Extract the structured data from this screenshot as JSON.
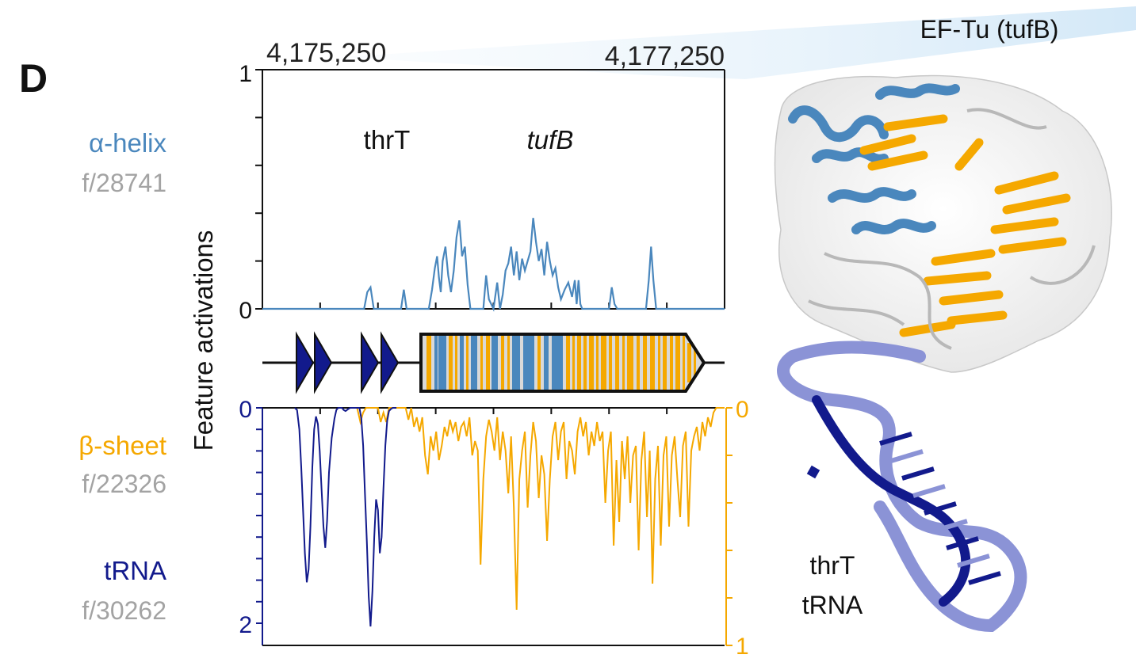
{
  "panel_label": "D",
  "colors": {
    "helix": "#4a87bd",
    "sheet": "#f5a800",
    "trna": "#121a8c",
    "feature_id": "#a3a3a3",
    "gene_fill": "#d9d9d9",
    "protein_light": "#f3f3f3",
    "rna_light": "#8b93d6"
  },
  "features": [
    {
      "name": "α-helix",
      "id": "f/28741",
      "color": "#4a87bd"
    },
    {
      "name": "β-sheet",
      "id": "f/22326",
      "color": "#f5a800"
    },
    {
      "name": "tRNA",
      "id": "f/30262",
      "color": "#121a8c"
    }
  ],
  "structure_labels": {
    "protein": "EF-Tu (tufB)",
    "rna_line1": "thrT",
    "rna_line2": "tRNA"
  },
  "chart_data": [
    {
      "type": "line",
      "name": "top",
      "ylabel": "Feature activations",
      "x_coordinate_labels": [
        "4,175,250",
        "4,177,250"
      ],
      "ylim": [
        0,
        1
      ],
      "yticks": [
        "0",
        "1"
      ],
      "gene_annotations": [
        {
          "label": "thrT",
          "italic": false
        },
        {
          "label": "tufB",
          "italic": true
        }
      ],
      "series": [
        {
          "feature": "α-helix",
          "color": "#4a87bd",
          "x": [
            0,
            0.22,
            0.227,
            0.234,
            0.241,
            0.3,
            0.306,
            0.312,
            0.36,
            0.367,
            0.373,
            0.378,
            0.382,
            0.386,
            0.39,
            0.396,
            0.402,
            0.408,
            0.414,
            0.42,
            0.426,
            0.432,
            0.438,
            0.444,
            0.45,
            0.456,
            0.478,
            0.484,
            0.49,
            0.5,
            0.508,
            0.514,
            0.52,
            0.526,
            0.532,
            0.538,
            0.544,
            0.55,
            0.556,
            0.562,
            0.568,
            0.574,
            0.58,
            0.586,
            0.592,
            0.598,
            0.604,
            0.61,
            0.616,
            0.622,
            0.628,
            0.634,
            0.64,
            0.646,
            0.654,
            0.662,
            0.67,
            0.676,
            0.68,
            0.684,
            0.688,
            0.692,
            0.75,
            0.756,
            0.762,
            0.768,
            0.83,
            0.836,
            0.841,
            0.846,
            0.852,
            1.0
          ],
          "y": [
            0,
            0,
            0.07,
            0.09,
            0,
            0,
            0.08,
            0,
            0,
            0.08,
            0.17,
            0.22,
            0.13,
            0.07,
            0.2,
            0.26,
            0.14,
            0.07,
            0.16,
            0.3,
            0.37,
            0.22,
            0.26,
            0.1,
            0,
            0,
            0,
            0.14,
            0.04,
            0,
            0.11,
            0,
            0.06,
            0.16,
            0.19,
            0.26,
            0.14,
            0.24,
            0.12,
            0.21,
            0.16,
            0.2,
            0.24,
            0.38,
            0.28,
            0.2,
            0.25,
            0.14,
            0.28,
            0.2,
            0.14,
            0.17,
            0.09,
            0.04,
            0.08,
            0.11,
            0.05,
            0.12,
            0.02,
            0.12,
            0.02,
            0,
            0,
            0.09,
            0.02,
            0,
            0,
            0.12,
            0.26,
            0.12,
            0,
            0
          ]
        }
      ]
    },
    {
      "type": "line",
      "name": "bottom",
      "ylabel": "Feature activations",
      "left_axis": {
        "feature": "tRNA",
        "ylim": [
          0,
          2
        ],
        "yticks": [
          "0",
          "2"
        ],
        "inverted": true
      },
      "right_axis": {
        "feature": "β-sheet",
        "ylim": [
          0,
          1
        ],
        "yticks": [
          "0",
          "1"
        ],
        "inverted": true
      },
      "series": [
        {
          "feature": "tRNA",
          "color": "#121a8c",
          "x": [
            0.07,
            0.075,
            0.08,
            0.084,
            0.088,
            0.092,
            0.096,
            0.1,
            0.104,
            0.108,
            0.112,
            0.116,
            0.12,
            0.124,
            0.128,
            0.132,
            0.136,
            0.14,
            0.144,
            0.15,
            0.156,
            0.16,
            0.164,
            0.168,
            0.172,
            0.176,
            0.18,
            0.186,
            0.19,
            0.195,
            0.21,
            0.214,
            0.218,
            0.222,
            0.226,
            0.23,
            0.234,
            0.238,
            0.242,
            0.246,
            0.25,
            0.254,
            0.258,
            0.262,
            0.266,
            0.27,
            0.274,
            0.278,
            0.282,
            0.286,
            0.29
          ],
          "y": [
            0,
            0.02,
            0.2,
            0.55,
            0.95,
            1.35,
            1.62,
            1.5,
            1.1,
            0.55,
            0.2,
            0.08,
            0.15,
            0.4,
            0.75,
            1.1,
            1.3,
            1.05,
            0.6,
            0.28,
            0.1,
            0.02,
            0,
            0,
            0,
            0.02,
            0.03,
            0.01,
            0,
            0,
            0,
            0.1,
            0.35,
            0.8,
            1.25,
            1.75,
            2.03,
            1.7,
            1.2,
            0.85,
            0.95,
            1.35,
            1.2,
            0.75,
            0.35,
            0.12,
            0.03,
            0.01,
            0,
            0,
            0
          ]
        },
        {
          "feature": "β-sheet",
          "color": "#f5a800",
          "x": [
            0.205,
            0.212,
            0.218,
            0.224,
            0.25,
            0.256,
            0.262,
            0.268,
            0.274,
            0.28,
            0.29,
            0.3,
            0.31,
            0.316,
            0.322,
            0.328,
            0.334,
            0.34,
            0.346,
            0.352,
            0.358,
            0.364,
            0.37,
            0.376,
            0.382,
            0.388,
            0.394,
            0.4,
            0.406,
            0.412,
            0.418,
            0.424,
            0.43,
            0.436,
            0.442,
            0.448,
            0.454,
            0.46,
            0.466,
            0.472,
            0.478,
            0.484,
            0.49,
            0.496,
            0.502,
            0.508,
            0.514,
            0.52,
            0.526,
            0.532,
            0.538,
            0.544,
            0.55,
            0.556,
            0.562,
            0.568,
            0.574,
            0.58,
            0.586,
            0.592,
            0.598,
            0.604,
            0.61,
            0.616,
            0.622,
            0.628,
            0.634,
            0.64,
            0.646,
            0.652,
            0.658,
            0.664,
            0.67,
            0.676,
            0.682,
            0.688,
            0.694,
            0.7,
            0.706,
            0.712,
            0.718,
            0.724,
            0.73,
            0.736,
            0.742,
            0.748,
            0.754,
            0.76,
            0.766,
            0.772,
            0.778,
            0.784,
            0.79,
            0.796,
            0.802,
            0.808,
            0.814,
            0.82,
            0.826,
            0.832,
            0.838,
            0.844,
            0.85,
            0.856,
            0.862,
            0.868,
            0.874,
            0.88,
            0.886,
            0.892,
            0.898,
            0.904,
            0.91,
            0.916,
            0.922,
            0.928,
            0.934,
            0.94,
            0.946,
            0.952,
            0.958,
            0.964,
            0.97,
            0.976,
            0.982,
            0.99,
            1.0
          ],
          "y": [
            0,
            0.06,
            0.02,
            0,
            0,
            0.06,
            0.02,
            0.06,
            0,
            0,
            0,
            0,
            0,
            0.05,
            0,
            0.08,
            0.04,
            0.1,
            0.04,
            0.2,
            0.28,
            0.12,
            0.18,
            0.1,
            0.22,
            0.16,
            0.08,
            0.12,
            0.05,
            0.1,
            0.06,
            0.14,
            0.08,
            0.06,
            0.12,
            0.04,
            0.2,
            0.14,
            0.18,
            0.66,
            0.3,
            0.12,
            0.05,
            0.1,
            0.18,
            0.04,
            0.22,
            0.1,
            0.18,
            0.36,
            0.12,
            0.42,
            0.85,
            0.3,
            0.18,
            0.1,
            0.42,
            0.2,
            0.06,
            0.14,
            0.38,
            0.2,
            0.28,
            0.56,
            0.3,
            0.12,
            0.06,
            0.22,
            0.1,
            0.06,
            0.3,
            0.14,
            0.18,
            0.28,
            0.1,
            0.04,
            0.12,
            0.06,
            0.2,
            0.1,
            0.16,
            0.06,
            0.14,
            0.1,
            0.4,
            0.18,
            0.1,
            0.58,
            0.22,
            0.48,
            0.14,
            0.3,
            0.12,
            0.4,
            0.2,
            0.16,
            0.6,
            0.22,
            0.1,
            0.46,
            0.18,
            0.74,
            0.3,
            0.16,
            0.58,
            0.2,
            0.12,
            0.5,
            0.2,
            0.12,
            0.3,
            0.46,
            0.16,
            0.1,
            0.5,
            0.18,
            0.12,
            0.08,
            0.18,
            0.06,
            0.12,
            0.04,
            0.08,
            0.02,
            0,
            0,
            0
          ]
        }
      ]
    }
  ]
}
